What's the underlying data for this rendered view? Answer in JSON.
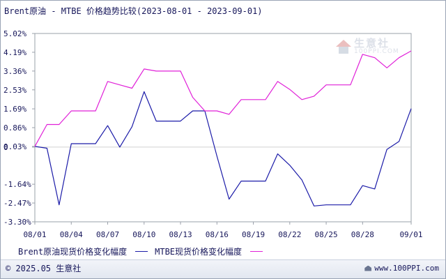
{
  "title": "Brent原油 - MTBE 价格趋势比较(2023-08-01 - 2023-09-01)",
  "watermark": {
    "cn": "生意社",
    "en": "100PPI.COM"
  },
  "footer": {
    "copyright": "© 2025.05 生意社",
    "site": "www.100PPI.com"
  },
  "colors": {
    "brent": "#1b1ba8",
    "mtbe": "#e020d8",
    "axis": "#9aa0aa",
    "text": "#16165a",
    "grid": "#d0d0d0"
  },
  "chart_data": {
    "type": "line",
    "ylim": [
      -3.3,
      5.02
    ],
    "ytick_values": [
      5.02,
      4.19,
      3.36,
      2.53,
      1.69,
      0.86,
      0.03,
      0,
      -1.64,
      -2.47,
      -3.3
    ],
    "ytick_labels": [
      "5.02%",
      "4.19%",
      "3.36%",
      "2.53%",
      "1.69%",
      "0.86%",
      "0.03%",
      "0",
      "-1.64%",
      "-2.47%",
      "-3.30%"
    ],
    "xlim": [
      0,
      31
    ],
    "xtick_values": [
      0,
      3,
      6,
      9,
      12,
      15,
      18,
      21,
      24,
      27,
      31
    ],
    "xtick_labels": [
      "08/01",
      "08/04",
      "08/07",
      "08/10",
      "08/13",
      "08/16",
      "08/19",
      "08/22",
      "08/25",
      "08/28",
      "09/01"
    ],
    "legend_placement": "bottom",
    "series": [
      {
        "name": "Brent原油现货价格变化幅度",
        "color": "#1b1ba8",
        "points": [
          [
            0,
            0.03
          ],
          [
            1,
            -0.05
          ],
          [
            2,
            -2.55
          ],
          [
            3,
            0.15
          ],
          [
            4,
            0.15
          ],
          [
            5,
            0.15
          ],
          [
            6,
            0.95
          ],
          [
            7,
            0
          ],
          [
            8,
            0.9
          ],
          [
            9,
            2.45
          ],
          [
            10,
            1.15
          ],
          [
            11,
            1.15
          ],
          [
            12,
            1.15
          ],
          [
            13,
            1.6
          ],
          [
            14,
            1.6
          ],
          [
            15,
            -0.4
          ],
          [
            16,
            -2.3
          ],
          [
            17,
            -1.5
          ],
          [
            18,
            -1.5
          ],
          [
            19,
            -1.5
          ],
          [
            20,
            -0.3
          ],
          [
            21,
            -0.8
          ],
          [
            22,
            -1.45
          ],
          [
            23,
            -2.6
          ],
          [
            24,
            -2.55
          ],
          [
            25,
            -2.55
          ],
          [
            26,
            -2.55
          ],
          [
            27,
            -1.7
          ],
          [
            28,
            -1.85
          ],
          [
            29,
            -0.1
          ],
          [
            30,
            0.25
          ],
          [
            31,
            1.7
          ]
        ]
      },
      {
        "name": "MTBE现货价格变化幅度",
        "color": "#e020d8",
        "points": [
          [
            0,
            0.03
          ],
          [
            1,
            1.0
          ],
          [
            2,
            1.0
          ],
          [
            3,
            1.6
          ],
          [
            4,
            1.6
          ],
          [
            5,
            1.6
          ],
          [
            6,
            2.9
          ],
          [
            7,
            2.75
          ],
          [
            8,
            2.6
          ],
          [
            9,
            3.45
          ],
          [
            10,
            3.36
          ],
          [
            11,
            3.36
          ],
          [
            12,
            3.36
          ],
          [
            13,
            2.2
          ],
          [
            14,
            1.6
          ],
          [
            15,
            1.6
          ],
          [
            16,
            1.45
          ],
          [
            17,
            2.1
          ],
          [
            18,
            2.1
          ],
          [
            19,
            2.1
          ],
          [
            20,
            2.9
          ],
          [
            21,
            2.55
          ],
          [
            22,
            2.1
          ],
          [
            23,
            2.25
          ],
          [
            24,
            2.75
          ],
          [
            25,
            2.75
          ],
          [
            26,
            2.75
          ],
          [
            27,
            4.1
          ],
          [
            28,
            3.95
          ],
          [
            29,
            3.5
          ],
          [
            30,
            3.95
          ],
          [
            31,
            4.25
          ]
        ]
      }
    ]
  }
}
